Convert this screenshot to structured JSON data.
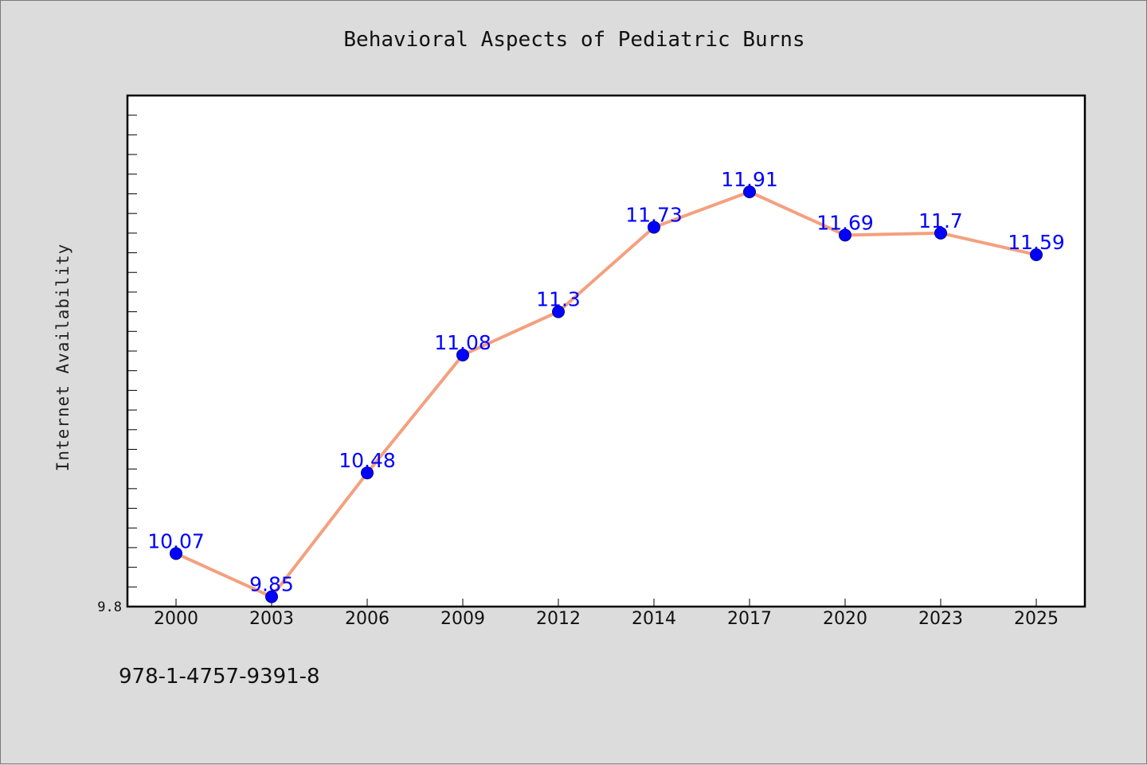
{
  "chart_data": {
    "type": "line",
    "title": "Behavioral Aspects of Pediatric Burns",
    "ylabel": "Internet Availability",
    "xlabel": "",
    "categories": [
      "2000",
      "2003",
      "2006",
      "2009",
      "2012",
      "2014",
      "2017",
      "2020",
      "2023",
      "2025"
    ],
    "series": [
      {
        "values": [
          10.07,
          9.85,
          10.48,
          11.08,
          11.3,
          11.73,
          11.91,
          11.69,
          11.7,
          11.59
        ],
        "labels": [
          "10.07",
          "9.85",
          "10.48",
          "11.08",
          "11.3",
          "11.73",
          "11.91",
          "11.69",
          "11.7",
          "11.59"
        ]
      }
    ],
    "y_tick_labels": [
      "9.8"
    ],
    "ylim": [
      9.8,
      12.4
    ],
    "y_minor_step": 0.1,
    "grid": false,
    "legend": "none",
    "colors": {
      "line": "#f4a07e",
      "marker": "#0000ff",
      "label": "#0000ff",
      "background": "#dcdcdc",
      "plot": "#ffffff"
    }
  },
  "footnote": "978-1-4757-9391-8"
}
